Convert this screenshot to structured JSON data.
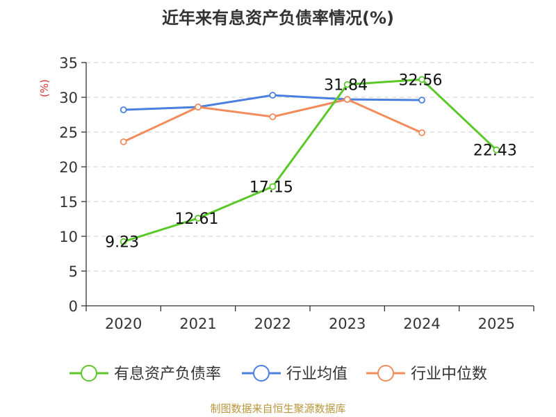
{
  "chart_data": {
    "type": "line",
    "title": "近年来有息资产负债率情况(%)",
    "ylabel": "(%)",
    "categories": [
      "2020",
      "2021",
      "2022",
      "2023",
      "2024",
      "2025"
    ],
    "ylim": [
      0,
      35
    ],
    "yticks": [
      0,
      5,
      10,
      15,
      20,
      25,
      30,
      35
    ],
    "grid": true,
    "legend_position": "bottom",
    "series": [
      {
        "name": "有息资产负债率",
        "color": "#5bc82a",
        "values": [
          9.23,
          12.61,
          17.15,
          31.84,
          32.56,
          22.43
        ],
        "labels": [
          "9.23",
          "12.61",
          "17.15",
          "31.84",
          "32.56",
          "22.43"
        ]
      },
      {
        "name": "行业均值",
        "color": "#4a7fe0",
        "values": [
          28.2,
          28.6,
          30.3,
          29.7,
          29.6,
          null
        ]
      },
      {
        "name": "行业中位数",
        "color": "#f28c5b",
        "values": [
          23.6,
          28.6,
          27.2,
          29.7,
          24.9,
          null
        ]
      }
    ]
  },
  "footer": {
    "source": "制图数据来自恒生聚源数据库"
  }
}
